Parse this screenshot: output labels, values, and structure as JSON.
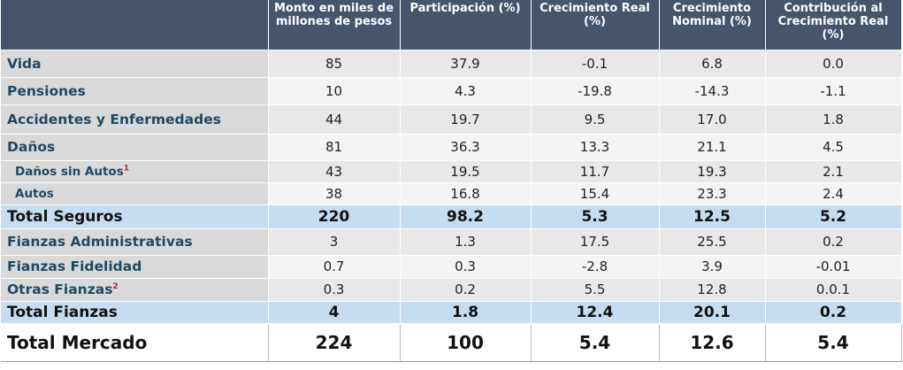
{
  "table": {
    "headers": [
      "",
      "Monto en miles de millones de pesos",
      "Participación (%)",
      "Crecimiento Real (%)",
      "Crecimiento Nominal (%)",
      "Contribución al Crecimiento Real (%)"
    ],
    "rows": [
      {
        "label": "Vida",
        "sup": "",
        "values": [
          "85",
          "37.9",
          "-0.1",
          "6.8",
          "0.0"
        ]
      },
      {
        "label": "Pensiones",
        "sup": "",
        "values": [
          "10",
          "4.3",
          "-19.8",
          "-14.3",
          "-1.1"
        ]
      },
      {
        "label": "Accidentes y Enfermedades",
        "sup": "",
        "values": [
          "44",
          "19.7",
          "9.5",
          "17.0",
          "1.8"
        ]
      },
      {
        "label": "Daños",
        "sup": "",
        "values": [
          "81",
          "36.3",
          "13.3",
          "21.1",
          "4.5"
        ]
      },
      {
        "label": "Daños sin Autos",
        "sup": "1",
        "values": [
          "43",
          "19.5",
          "11.7",
          "19.3",
          "2.1"
        ]
      },
      {
        "label": "Autos",
        "sup": "",
        "values": [
          "38",
          "16.8",
          "15.4",
          "23.3",
          "2.4"
        ]
      },
      {
        "label": "Total Seguros",
        "sup": "",
        "values": [
          "220",
          "98.2",
          "5.3",
          "12.5",
          "5.2"
        ]
      },
      {
        "label": "Fianzas Administrativas",
        "sup": "",
        "values": [
          "3",
          "1.3",
          "17.5",
          "25.5",
          "0.2"
        ]
      },
      {
        "label": "Fianzas Fidelidad",
        "sup": "",
        "values": [
          "0.7",
          "0.3",
          "-2.8",
          "3.9",
          "-0.01"
        ]
      },
      {
        "label": "Otras Fianzas",
        "sup": "2",
        "values": [
          "0.3",
          "0.2",
          "5.5",
          "12.8",
          "0.0.1"
        ]
      },
      {
        "label": "Total Fianzas",
        "sup": "",
        "values": [
          "4",
          "1.8",
          "12.4",
          "20.1",
          "0.2"
        ]
      },
      {
        "label": "Total Mercado",
        "sup": "",
        "values": [
          "224",
          "100",
          "5.4",
          "12.6",
          "5.4"
        ]
      }
    ]
  }
}
